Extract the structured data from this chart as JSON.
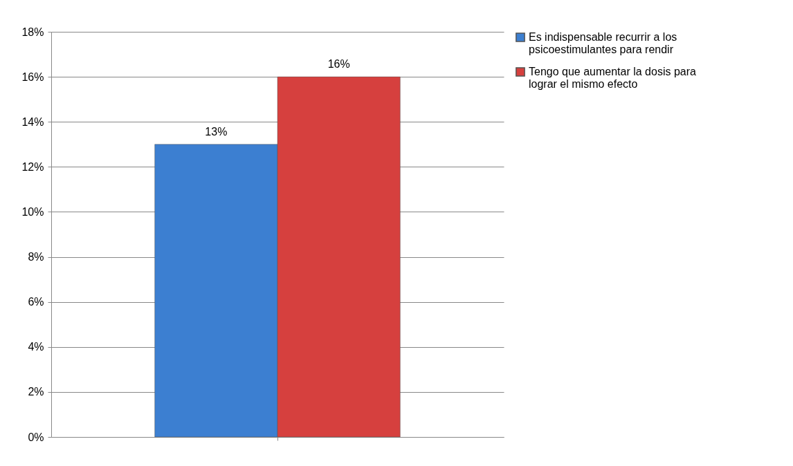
{
  "chart_data": {
    "type": "bar",
    "categories": [
      null
    ],
    "series": [
      {
        "name": "Es indispensable recurrir a los psicoestimulantes para rendir",
        "color": "#3c7fd1",
        "values": [
          13
        ],
        "value_labels": [
          "13%"
        ]
      },
      {
        "name": "Tengo que aumentar la dosis para lograr el mismo efecto",
        "color": "#d6403e",
        "values": [
          16
        ],
        "value_labels": [
          "16%"
        ]
      }
    ],
    "ylim": [
      0,
      18
    ],
    "yticks": [
      {
        "value": 0,
        "label": "0%"
      },
      {
        "value": 2,
        "label": "2%"
      },
      {
        "value": 4,
        "label": "4%"
      },
      {
        "value": 6,
        "label": "6%"
      },
      {
        "value": 8,
        "label": "8%"
      },
      {
        "value": 10,
        "label": "10%"
      },
      {
        "value": 12,
        "label": "12%"
      },
      {
        "value": 14,
        "label": "14%"
      },
      {
        "value": 16,
        "label": "16%"
      },
      {
        "value": 18,
        "label": "18%"
      }
    ],
    "grid": "y",
    "legend": "right"
  }
}
